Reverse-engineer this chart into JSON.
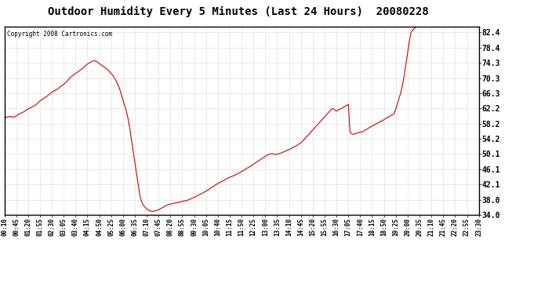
{
  "title": "Outdoor Humidity Every 5 Minutes (Last 24 Hours)  20080228",
  "copyright": "Copyright 2008 Cartronics.com",
  "line_color": "#cc0000",
  "bg_color": "#ffffff",
  "grid_color": "#aaaaaa",
  "ylim": [
    34.0,
    84.0
  ],
  "yticks": [
    34.0,
    38.0,
    42.1,
    46.1,
    50.1,
    54.2,
    58.2,
    62.2,
    66.3,
    70.3,
    74.3,
    78.4,
    82.4
  ],
  "ytick_labels": [
    "34.0",
    "38.0",
    "42.1",
    "46.1",
    "50.1",
    "54.2",
    "58.2",
    "62.2",
    "66.3",
    "70.3",
    "74.3",
    "78.4",
    "82.4"
  ],
  "humidity_values": [
    59.5,
    59.8,
    60.0,
    60.1,
    60.0,
    59.9,
    60.0,
    60.2,
    60.5,
    60.8,
    61.0,
    61.2,
    61.5,
    61.8,
    62.0,
    62.3,
    62.5,
    62.8,
    63.0,
    63.3,
    63.8,
    64.2,
    64.5,
    64.8,
    65.1,
    65.4,
    65.8,
    66.2,
    66.5,
    66.8,
    67.0,
    67.3,
    67.6,
    68.0,
    68.3,
    68.6,
    69.0,
    69.4,
    70.0,
    70.5,
    70.8,
    71.2,
    71.5,
    71.8,
    72.1,
    72.5,
    72.8,
    73.2,
    73.6,
    74.0,
    74.3,
    74.5,
    74.8,
    74.9,
    74.8,
    74.5,
    74.2,
    73.8,
    73.5,
    73.2,
    72.8,
    72.5,
    72.0,
    71.5,
    71.0,
    70.3,
    69.5,
    68.5,
    67.5,
    66.0,
    64.5,
    63.0,
    61.5,
    59.5,
    57.0,
    54.0,
    51.0,
    48.0,
    45.0,
    42.0,
    39.0,
    37.5,
    36.5,
    36.0,
    35.5,
    35.2,
    35.0,
    34.9,
    34.9,
    35.0,
    35.1,
    35.3,
    35.5,
    35.8,
    36.0,
    36.3,
    36.5,
    36.7,
    36.8,
    36.9,
    37.0,
    37.1,
    37.2,
    37.3,
    37.4,
    37.5,
    37.6,
    37.7,
    37.8,
    38.0,
    38.2,
    38.4,
    38.6,
    38.8,
    39.0,
    39.3,
    39.5,
    39.7,
    40.0,
    40.2,
    40.5,
    40.8,
    41.1,
    41.4,
    41.7,
    42.0,
    42.3,
    42.5,
    42.7,
    43.0,
    43.2,
    43.5,
    43.7,
    43.9,
    44.1,
    44.3,
    44.5,
    44.7,
    44.9,
    45.2,
    45.5,
    45.7,
    46.0,
    46.3,
    46.5,
    46.8,
    47.1,
    47.4,
    47.7,
    48.0,
    48.3,
    48.6,
    48.9,
    49.2,
    49.5,
    49.8,
    50.0,
    50.1,
    50.2,
    50.1,
    50.0,
    50.1,
    50.2,
    50.3,
    50.5,
    50.7,
    50.9,
    51.1,
    51.3,
    51.5,
    51.8,
    52.0,
    52.2,
    52.5,
    52.8,
    53.1,
    53.5,
    54.0,
    54.5,
    55.0,
    55.5,
    56.0,
    56.5,
    57.0,
    57.5,
    58.0,
    58.5,
    59.0,
    59.5,
    60.0,
    60.5,
    61.0,
    61.5,
    62.0,
    62.2,
    61.8,
    61.5,
    61.8,
    62.0,
    62.2,
    62.5,
    62.8,
    63.0,
    63.3,
    56.0,
    55.5,
    55.3,
    55.5,
    55.7,
    55.8,
    55.9,
    56.0,
    56.2,
    56.5,
    56.7,
    57.0,
    57.3,
    57.5,
    57.8,
    58.0,
    58.3,
    58.5,
    58.7,
    59.0,
    59.2,
    59.5,
    59.8,
    60.0,
    60.3,
    60.5,
    60.8,
    62.0,
    63.5,
    65.0,
    66.5,
    68.5,
    71.0,
    74.0,
    77.0,
    80.0,
    82.5,
    83.0,
    83.5,
    84.0
  ],
  "x_tick_labels": [
    "00:10",
    "00:45",
    "01:20",
    "01:55",
    "02:30",
    "03:05",
    "03:40",
    "04:15",
    "04:50",
    "05:25",
    "06:00",
    "06:35",
    "07:10",
    "07:45",
    "08:20",
    "08:55",
    "09:30",
    "10:05",
    "10:40",
    "11:15",
    "11:50",
    "12:25",
    "13:00",
    "13:35",
    "14:10",
    "14:45",
    "15:20",
    "15:55",
    "16:30",
    "17:05",
    "17:40",
    "18:15",
    "18:50",
    "19:25",
    "20:00",
    "20:35",
    "21:10",
    "21:45",
    "22:20",
    "22:55",
    "23:30"
  ]
}
